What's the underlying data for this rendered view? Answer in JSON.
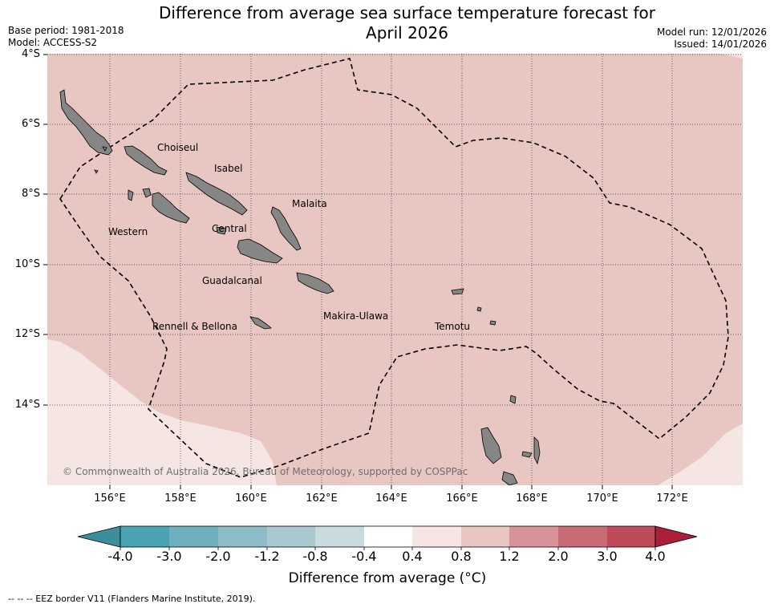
{
  "title_line1": "Difference from average sea surface temperature forecast for",
  "title_line2": "April 2026",
  "base_period": "Base period: 1981-2018",
  "model": "Model: ACCESS-S2",
  "model_run": "Model run: 12/01/2026",
  "issued": "Issued: 14/01/2026",
  "lat_labels": [
    "4°S",
    "6°S",
    "8°S",
    "10°S",
    "12°S",
    "14°S"
  ],
  "lon_labels": [
    "156°E",
    "158°E",
    "160°E",
    "162°E",
    "164°E",
    "166°E",
    "168°E",
    "170°E",
    "172°E"
  ],
  "regions": [
    "Choiseul",
    "Isabel",
    "Malaita",
    "Western",
    "Central",
    "Guadalcanal",
    "Makira-Ulawa",
    "Rennell & Bellona",
    "Temotu"
  ],
  "copyright": "© Commonwealth of Australia 2026, Bureau of Meteorology, supported by COSPPac",
  "colorbar": {
    "title": "Difference from average (°C)",
    "ticks": [
      "-4.0",
      "-3.0",
      "-2.0",
      "-1.2",
      "-0.8",
      "-0.4",
      "0.4",
      "0.8",
      "1.2",
      "2.0",
      "3.0",
      "4.0"
    ],
    "colors": [
      "#3b8f9b",
      "#4aa3b3",
      "#6fb0bf",
      "#8cbdc7",
      "#a9c9ce",
      "#c9dbdf",
      "#ffffff",
      "#f5e6e4",
      "#e8c6c2",
      "#d8929a",
      "#c96b76",
      "#bf4a5a",
      "#ab1f3b"
    ]
  },
  "footnote": "-- -- -- EEZ border V11 (Flanders Marine Institute, 2019).",
  "map_colors": {
    "anomaly_0.8_1.2": "#e8c6c2",
    "anomaly_0.4_0.8": "#f5e6e4",
    "land": "#868686"
  }
}
